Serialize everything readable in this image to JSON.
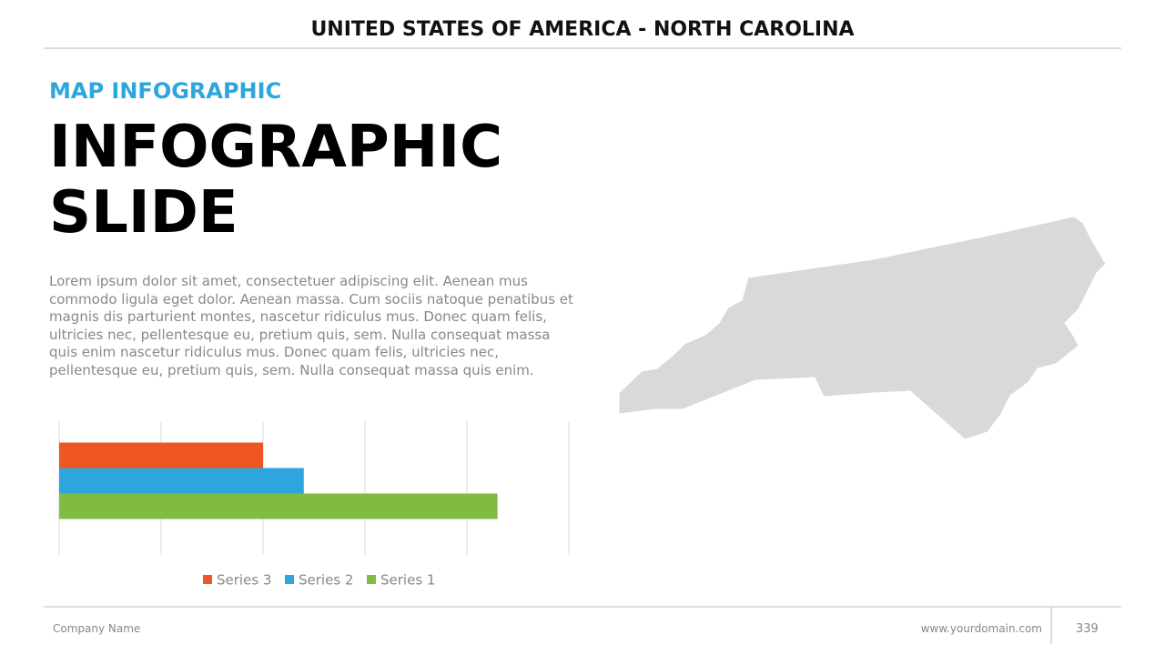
{
  "header": {
    "title": "UNITED STATES OF AMERICA - NORTH CAROLINA"
  },
  "section_label": "MAP INFOGRAPHIC",
  "headline": "INFOGRAPHIC SLIDE",
  "body": "Lorem ipsum dolor sit amet, consectetuer adipiscing elit. Aenean mus commodo ligula eget dolor. Aenean massa. Cum sociis natoque penatibus et magnis dis parturient montes, nascetur ridiculus mus. Donec quam felis, ultricies nec, pellentesque eu, pretium quis, sem. Nulla consequat massa quis enim nascetur ridiculus mus. Donec quam felis, ultricies nec, pellentesque eu, pretium quis, sem. Nulla consequat massa quis enim.",
  "chart_data": {
    "type": "hbar",
    "categories": [
      null
    ],
    "series": [
      {
        "name": "Series 3",
        "color": "#ee5623",
        "values": [
          2
        ]
      },
      {
        "name": "Series 2",
        "color": "#2ea6dd",
        "values": [
          2.4
        ]
      },
      {
        "name": "Series 1",
        "color": "#80bb42",
        "values": [
          4.3
        ]
      }
    ],
    "xlim": [
      0,
      5
    ],
    "xticks": [
      0,
      1,
      2,
      3,
      4,
      5
    ],
    "grid": true
  },
  "footer": {
    "company": "Company Name",
    "url": "www.yourdomain.com",
    "page": "339"
  }
}
